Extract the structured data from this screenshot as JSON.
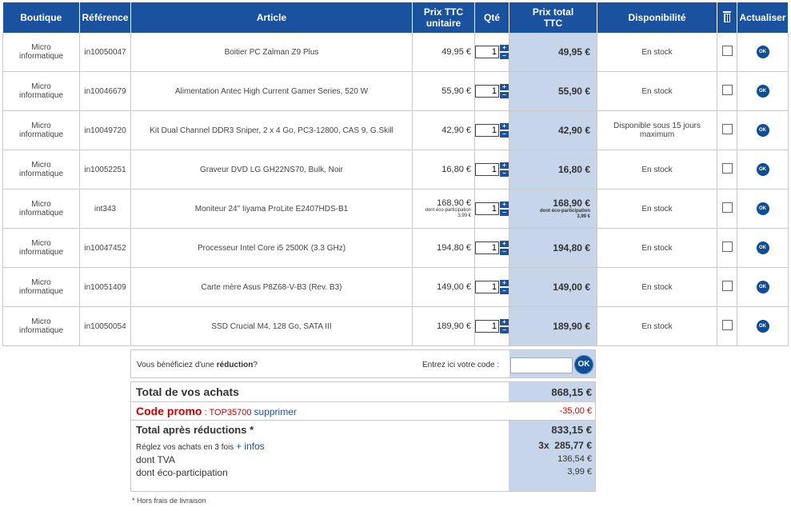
{
  "headers": {
    "boutique": "Boutique",
    "reference": "Référence",
    "article": "Article",
    "prix_unit_1": "Prix TTC",
    "prix_unit_2": "unitaire",
    "qte": "Qté",
    "prix_total_1": "Prix total",
    "prix_total_2": "TTC",
    "dispo": "Disponibilité",
    "actualiser": "Actualiser"
  },
  "rows": [
    {
      "boutique1": "Micro",
      "boutique2": "informatique",
      "ref": "in10050047",
      "article": "Boitier PC Zalman Z9 Plus",
      "unit": "49,95 €",
      "qty": "1",
      "total": "49,95 €",
      "dispo": "En stock",
      "ok": "OK"
    },
    {
      "boutique1": "Micro",
      "boutique2": "informatique",
      "ref": "in10046679",
      "article": "Alimentation Antec High Current Gamer Series, 520 W",
      "unit": "55,90 €",
      "qty": "1",
      "total": "55,90 €",
      "dispo": "En stock",
      "ok": "OK"
    },
    {
      "boutique1": "Micro",
      "boutique2": "informatique",
      "ref": "in10049720",
      "article": "Kit Dual Channel DDR3 Sniper, 2 x 4 Go, PC3-12800, CAS 9, G.Skill",
      "unit": "42,90 €",
      "qty": "1",
      "total": "42,90 €",
      "dispo": "Disponible sous 15 jours maximum",
      "ok": "OK"
    },
    {
      "boutique1": "Micro",
      "boutique2": "informatique",
      "ref": "in10052251",
      "article": "Graveur DVD LG GH22NS70, Bulk, Noir",
      "unit": "16,80 €",
      "qty": "1",
      "total": "16,80 €",
      "dispo": "En stock",
      "ok": "OK"
    },
    {
      "boutique1": "Micro",
      "boutique2": "informatique",
      "ref": "int343",
      "article": "Moniteur 24\" Iiyama ProLite E2407HDS-B1",
      "unit": "168,90 €",
      "eco_label": "dont éco-participation",
      "eco_value": "3,99 €",
      "qty": "1",
      "total": "168,90 €",
      "dispo": "En stock",
      "ok": "OK"
    },
    {
      "boutique1": "Micro",
      "boutique2": "informatique",
      "ref": "in10047452",
      "article": "Processeur Intel Core i5 2500K (3.3 GHz)",
      "unit": "194,80 €",
      "qty": "1",
      "total": "194,80 €",
      "dispo": "En stock",
      "ok": "OK"
    },
    {
      "boutique1": "Micro",
      "boutique2": "informatique",
      "ref": "in10051409",
      "article": "Carte mère Asus P8Z68-V-B3 (Rev. B3)",
      "unit": "149,00 €",
      "qty": "1",
      "total": "149,00 €",
      "dispo": "En stock",
      "ok": "OK"
    },
    {
      "boutique1": "Micro",
      "boutique2": "informatique",
      "ref": "in10050054",
      "article": "SSD Crucial M4, 128 Go, SATA III",
      "unit": "189,90 €",
      "qty": "1",
      "total": "189,90 €",
      "dispo": "En stock",
      "ok": "OK"
    }
  ],
  "reduction": {
    "text_before": "Vous bénéficiez d'une ",
    "text_bold": "réduction",
    "text_after": "?",
    "entry_label": "Entrez ici votre code :",
    "code_value": "",
    "ok": "OK"
  },
  "totals": {
    "total_label": "Total de vos achats",
    "total_value": "868,15 €",
    "promo_label": "Code promo",
    "promo_sep": " : ",
    "promo_code": "TOP35700",
    "promo_remove": "supprimer",
    "promo_value": "-35,00 €",
    "after_label": "Total après réductions *",
    "after_value": "833,15 €",
    "installments_text": "Réglez vos achats en 3 fois ",
    "installments_link": "+ infos",
    "installments_value": "3x  285,77 €",
    "tva_label": "dont TVA",
    "tva_value": "136,54 €",
    "eco_label": "dont éco-participation",
    "eco_value": "3,99 €"
  },
  "footnote": "* Hors frais de livraison",
  "colors": {
    "header_bg": "#1a52a0",
    "total_col_bg": "#c6d5ea",
    "promo_red": "#cc0000",
    "link_blue": "#1a52a0"
  }
}
